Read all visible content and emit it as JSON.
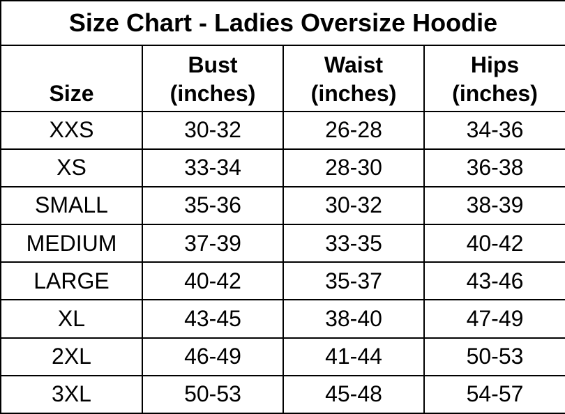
{
  "title": "Size Chart - Ladies Oversize Hoodie",
  "table": {
    "header": [
      "Size",
      "Bust\n(inches)",
      "Waist\n(inches)",
      "Hips\n(inches)"
    ],
    "rows": [
      [
        "XXS",
        "30-32",
        "26-28",
        "34-36"
      ],
      [
        "XS",
        "33-34",
        "28-30",
        "36-38"
      ],
      [
        "SMALL",
        "35-36",
        "30-32",
        "38-39"
      ],
      [
        "MEDIUM",
        "37-39",
        "33-35",
        "40-42"
      ],
      [
        "LARGE",
        "40-42",
        "35-37",
        "43-46"
      ],
      [
        "XL",
        "43-45",
        "38-40",
        "47-49"
      ],
      [
        "2XL",
        "46-49",
        "41-44",
        "50-53"
      ],
      [
        "3XL",
        "50-53",
        "45-48",
        "54-57"
      ]
    ]
  }
}
